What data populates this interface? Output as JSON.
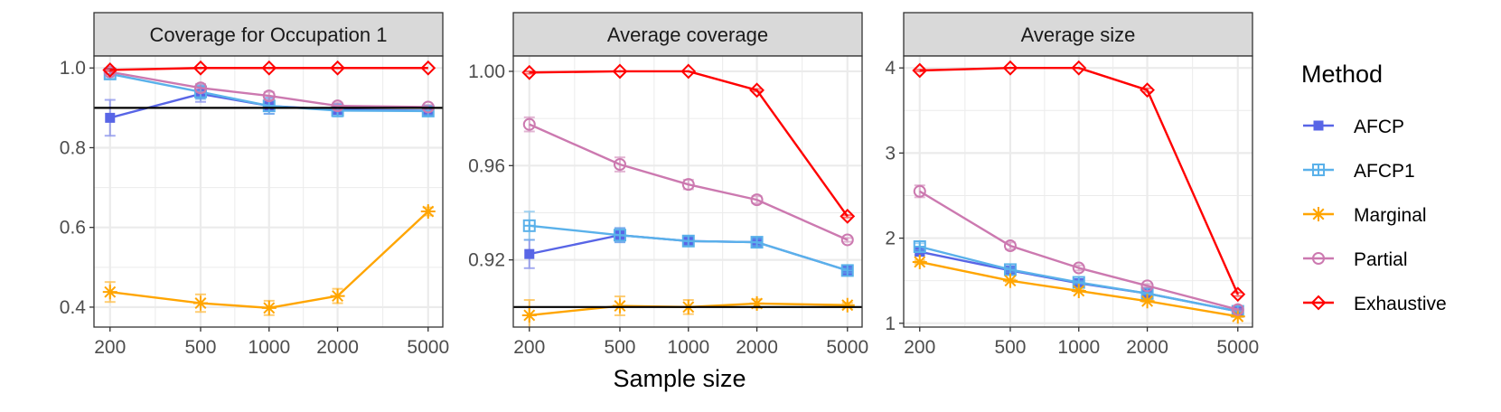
{
  "chart_data": [
    {
      "type": "line",
      "title": "Coverage for Occupation 1",
      "xlabel": "Sample size",
      "ylabel": "",
      "x_scale": "log",
      "x": [
        200,
        500,
        1000,
        2000,
        5000
      ],
      "x_tick_labels": [
        "200",
        "500",
        "1000",
        "2000",
        "5000"
      ],
      "xlim": [
        170,
        5800
      ],
      "ylim": [
        0.35,
        1.03
      ],
      "y_ticks": [
        0.4,
        0.6,
        0.8,
        1.0
      ],
      "y_tick_labels": [
        "0.4",
        "0.6",
        "0.8",
        "1.0"
      ],
      "hline": 0.9,
      "series": [
        {
          "name": "AFCP",
          "values": [
            0.875,
            0.935,
            0.905,
            0.895,
            0.893
          ],
          "err": [
            0.045,
            0.02,
            0.02,
            0.015,
            0.01
          ]
        },
        {
          "name": "AFCP1",
          "values": [
            0.985,
            0.94,
            0.905,
            0.893,
            0.892
          ],
          "err": [
            0.01,
            0.018,
            0.02,
            0.015,
            0.01
          ]
        },
        {
          "name": "Marginal",
          "values": [
            0.438,
            0.41,
            0.398,
            0.428,
            0.64
          ],
          "err": [
            0.025,
            0.022,
            0.018,
            0.018,
            0.01
          ]
        },
        {
          "name": "Partial",
          "values": [
            0.99,
            0.95,
            0.93,
            0.905,
            0.902
          ],
          "err": [
            0.005,
            0.01,
            0.01,
            0.008,
            0.005
          ]
        },
        {
          "name": "Exhaustive",
          "values": [
            0.995,
            1.0,
            1.0,
            1.0,
            1.0
          ],
          "err": [
            0.003,
            0.0,
            0.0,
            0.0,
            0.0
          ]
        }
      ]
    },
    {
      "type": "line",
      "title": "Average coverage",
      "xlabel": "Sample size",
      "ylabel": "",
      "x_scale": "log",
      "x": [
        200,
        500,
        1000,
        2000,
        5000
      ],
      "x_tick_labels": [
        "200",
        "500",
        "1000",
        "2000",
        "5000"
      ],
      "xlim": [
        170,
        5800
      ],
      "ylim": [
        0.8915,
        1.0065
      ],
      "y_ticks": [
        0.92,
        0.96,
        1.0
      ],
      "y_tick_labels": [
        "0.92",
        "0.96",
        "1.00"
      ],
      "hline": 0.9,
      "series": [
        {
          "name": "AFCP",
          "values": [
            0.9225,
            0.9305,
            0.928,
            0.9275,
            0.9155
          ],
          "err": [
            0.006,
            0.003,
            0.002,
            0.0015,
            0.001
          ]
        },
        {
          "name": "AFCP1",
          "values": [
            0.9345,
            0.9305,
            0.928,
            0.9275,
            0.9155
          ],
          "err": [
            0.006,
            0.003,
            0.002,
            0.0015,
            0.001
          ]
        },
        {
          "name": "Marginal",
          "values": [
            0.8965,
            0.9005,
            0.9,
            0.9015,
            0.9008
          ],
          "err": [
            0.0065,
            0.004,
            0.003,
            0.0018,
            0.001
          ]
        },
        {
          "name": "Partial",
          "values": [
            0.9775,
            0.9605,
            0.952,
            0.9455,
            0.9285
          ],
          "err": [
            0.003,
            0.003,
            0.002,
            0.0015,
            0.0008
          ]
        },
        {
          "name": "Exhaustive",
          "values": [
            0.9995,
            1.0,
            1.0,
            0.992,
            0.9385
          ],
          "err": [
            0.0005,
            0.0,
            0.0,
            0.0005,
            0.0005
          ]
        }
      ]
    },
    {
      "type": "line",
      "title": "Average size",
      "xlabel": "Sample size",
      "ylabel": "",
      "x_scale": "log",
      "x": [
        200,
        500,
        1000,
        2000,
        5000
      ],
      "x_tick_labels": [
        "200",
        "500",
        "1000",
        "2000",
        "5000"
      ],
      "xlim": [
        170,
        5800
      ],
      "ylim": [
        0.955,
        4.14
      ],
      "y_ticks": [
        1,
        2,
        3,
        4
      ],
      "y_tick_labels": [
        "1",
        "2",
        "3",
        "4"
      ],
      "hline": null,
      "series": [
        {
          "name": "AFCP",
          "values": [
            1.84,
            1.62,
            1.47,
            1.35,
            1.14
          ],
          "err": [
            0.04,
            0.03,
            0.02,
            0.015,
            0.01
          ]
        },
        {
          "name": "AFCP1",
          "values": [
            1.9,
            1.63,
            1.48,
            1.35,
            1.14
          ],
          "err": [
            0.04,
            0.03,
            0.02,
            0.015,
            0.01
          ]
        },
        {
          "name": "Marginal",
          "values": [
            1.72,
            1.5,
            1.38,
            1.26,
            1.08
          ],
          "err": [
            0.02,
            0.015,
            0.01,
            0.01,
            0.005
          ]
        },
        {
          "name": "Partial",
          "values": [
            2.55,
            1.91,
            1.65,
            1.44,
            1.16
          ],
          "err": [
            0.07,
            0.04,
            0.03,
            0.02,
            0.01
          ]
        },
        {
          "name": "Exhaustive",
          "values": [
            3.97,
            4.0,
            4.0,
            3.74,
            1.34
          ],
          "err": [
            0.01,
            0.0,
            0.0,
            0.02,
            0.02
          ]
        }
      ]
    }
  ],
  "shared_x_label": "Sample size",
  "legend": {
    "title": "Method",
    "items": [
      {
        "name": "AFCP",
        "color": "#5865e6",
        "marker": "filled-square"
      },
      {
        "name": "AFCP1",
        "color": "#5ab1ea",
        "marker": "boxed-plus"
      },
      {
        "name": "Marginal",
        "color": "#ffa500",
        "marker": "asterisk"
      },
      {
        "name": "Partial",
        "color": "#cc79b0",
        "marker": "open-circle"
      },
      {
        "name": "Exhaustive",
        "color": "#ff0000",
        "marker": "open-diamond"
      }
    ]
  },
  "colors": {
    "AFCP": "#5865e6",
    "AFCP1": "#5ab1ea",
    "Marginal": "#ffa500",
    "Partial": "#cc79b0",
    "Exhaustive": "#ff0000",
    "reference_line": "#000000",
    "strip_background": "#d9d9d9",
    "grid": "#ebebeb"
  }
}
